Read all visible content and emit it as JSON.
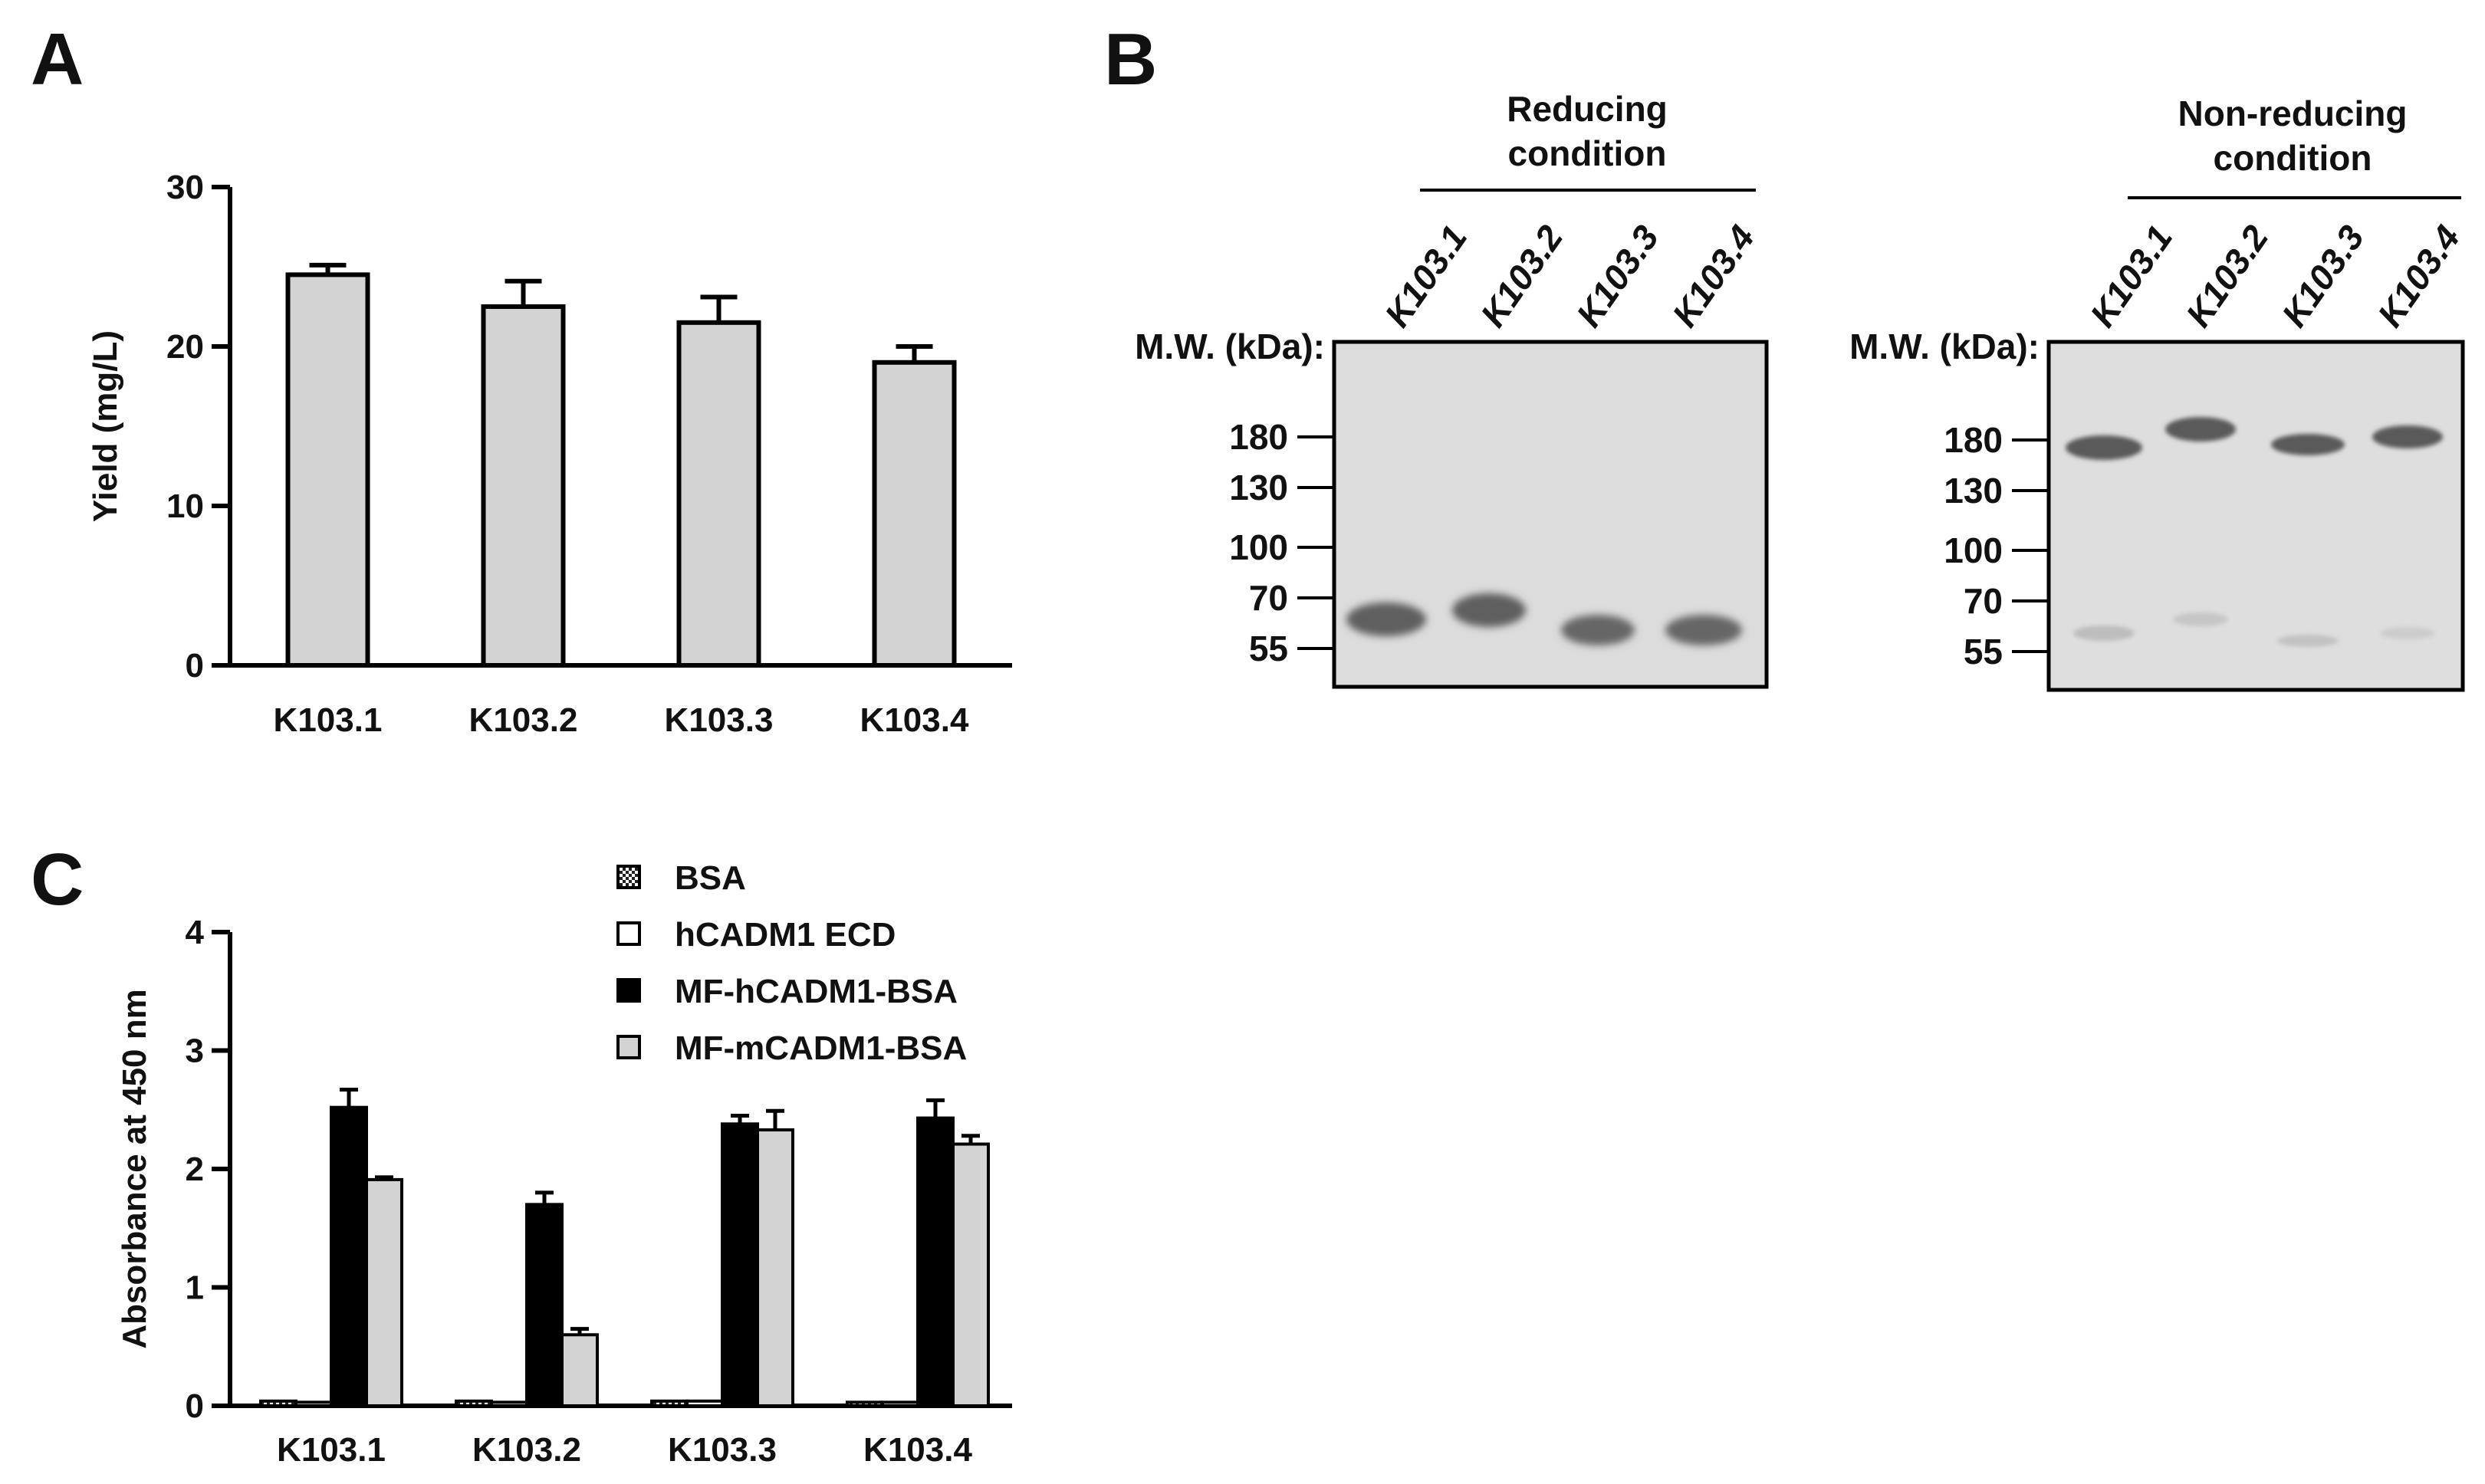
{
  "panels": {
    "a": {
      "label": "A"
    },
    "b": {
      "label": "B"
    },
    "c": {
      "label": "C"
    }
  },
  "chart_data": [
    {
      "id": "A",
      "type": "bar",
      "categories": [
        "K103.1",
        "K103.2",
        "K103.3",
        "K103.4"
      ],
      "values": [
        24.5,
        22.5,
        21.5,
        19.0
      ],
      "errors": [
        0.6,
        1.6,
        1.6,
        1.0
      ],
      "ylabel": "Yield (mg/L)",
      "ylim": [
        0,
        30
      ],
      "yticks": [
        0,
        10,
        20,
        30
      ],
      "bar_color": "#d3d3d3"
    },
    {
      "id": "C",
      "type": "bar",
      "categories": [
        "K103.1",
        "K103.2",
        "K103.3",
        "K103.4"
      ],
      "series": [
        {
          "name": "BSA",
          "values": [
            0.04,
            0.04,
            0.04,
            0.03
          ],
          "errors": [
            0.01,
            0.01,
            0.01,
            0.01
          ],
          "color": "#ffffff",
          "pattern": "checker"
        },
        {
          "name": "hCADM1  ECD",
          "values": [
            0.03,
            0.03,
            0.04,
            0.03
          ],
          "errors": [
            0.01,
            0.01,
            0.01,
            0.01
          ],
          "color": "#ffffff"
        },
        {
          "name": "MF-hCADM1-BSA",
          "values": [
            2.52,
            1.7,
            2.38,
            2.43
          ],
          "errors": [
            0.15,
            0.1,
            0.07,
            0.15
          ],
          "color": "#000000"
        },
        {
          "name": "MF-mCADM1-BSA",
          "values": [
            1.91,
            0.6,
            2.33,
            2.21
          ],
          "errors": [
            0.02,
            0.05,
            0.16,
            0.07
          ],
          "color": "#d3d3d3"
        }
      ],
      "ylabel": "Absorbance at 450 nm",
      "ylim": [
        0,
        4
      ],
      "yticks": [
        0,
        1,
        2,
        3,
        4
      ],
      "legend_position": "top-right"
    }
  ],
  "gels": [
    {
      "condition": [
        "Reducing",
        "condition"
      ],
      "lanes": [
        "K103.1",
        "K103.2",
        "K103.3",
        "K103.4"
      ],
      "mw_title": "M.W. (kDa):",
      "mw_markers": [
        "180",
        "130",
        "100",
        "70",
        "55"
      ]
    },
    {
      "condition": [
        "Non-reducing",
        "condition"
      ],
      "lanes": [
        "K103.1",
        "K103.2",
        "K103.3",
        "K103.4"
      ],
      "mw_title": "M.W. (kDa):",
      "mw_markers": [
        "180",
        "130",
        "100",
        "70",
        "55"
      ]
    }
  ]
}
